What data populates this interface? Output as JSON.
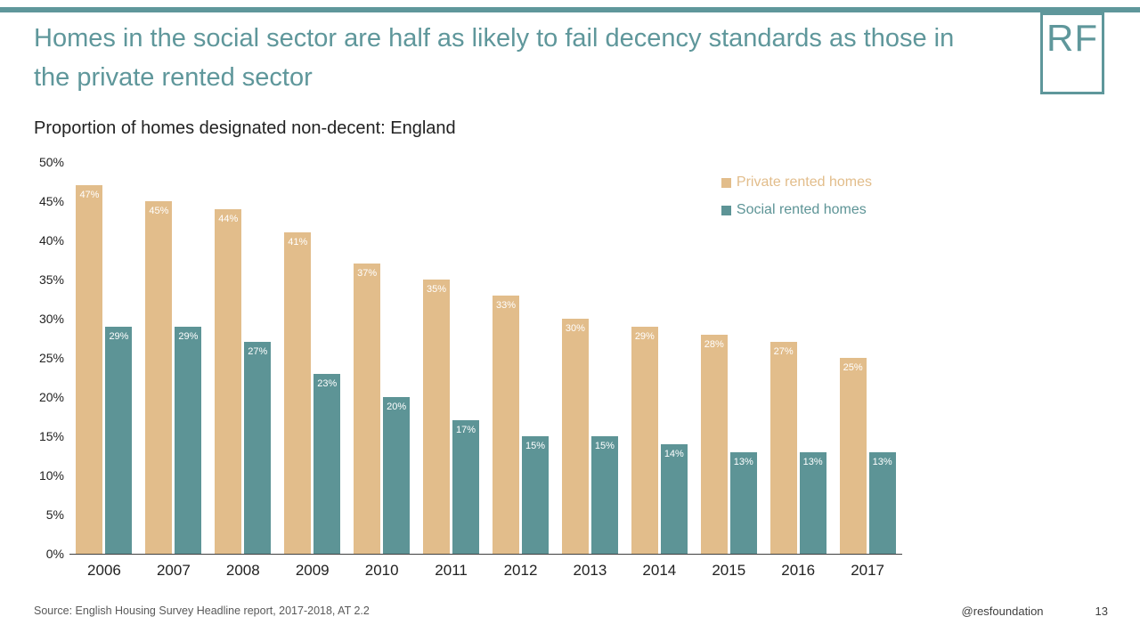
{
  "slide": {
    "title": "Homes in the social sector are half as likely to fail decency standards as those in the private rented sector",
    "logo": "RF",
    "source": "Source: English Housing Survey Headline report, 2017-2018, AT 2.2",
    "footer_handle": "@resfoundation",
    "page_number": "13"
  },
  "chart_data": {
    "type": "bar",
    "title": "Proportion of homes designated non-decent: England",
    "categories": [
      "2006",
      "2007",
      "2008",
      "2009",
      "2010",
      "2011",
      "2012",
      "2013",
      "2014",
      "2015",
      "2016",
      "2017"
    ],
    "series": [
      {
        "name": "Private rented homes",
        "color": "#e2bd8b",
        "values": [
          47,
          45,
          44,
          41,
          37,
          35,
          33,
          30,
          29,
          28,
          27,
          25
        ]
      },
      {
        "name": "Social rented homes",
        "color": "#5d9496",
        "values": [
          29,
          29,
          27,
          23,
          20,
          17,
          15,
          15,
          14,
          13,
          13,
          13
        ]
      }
    ],
    "ylim": [
      0,
      50
    ],
    "ytick_step": 5,
    "ytick_suffix": "%",
    "value_label_suffix": "%",
    "grid": false,
    "legend_position": "top-right"
  }
}
